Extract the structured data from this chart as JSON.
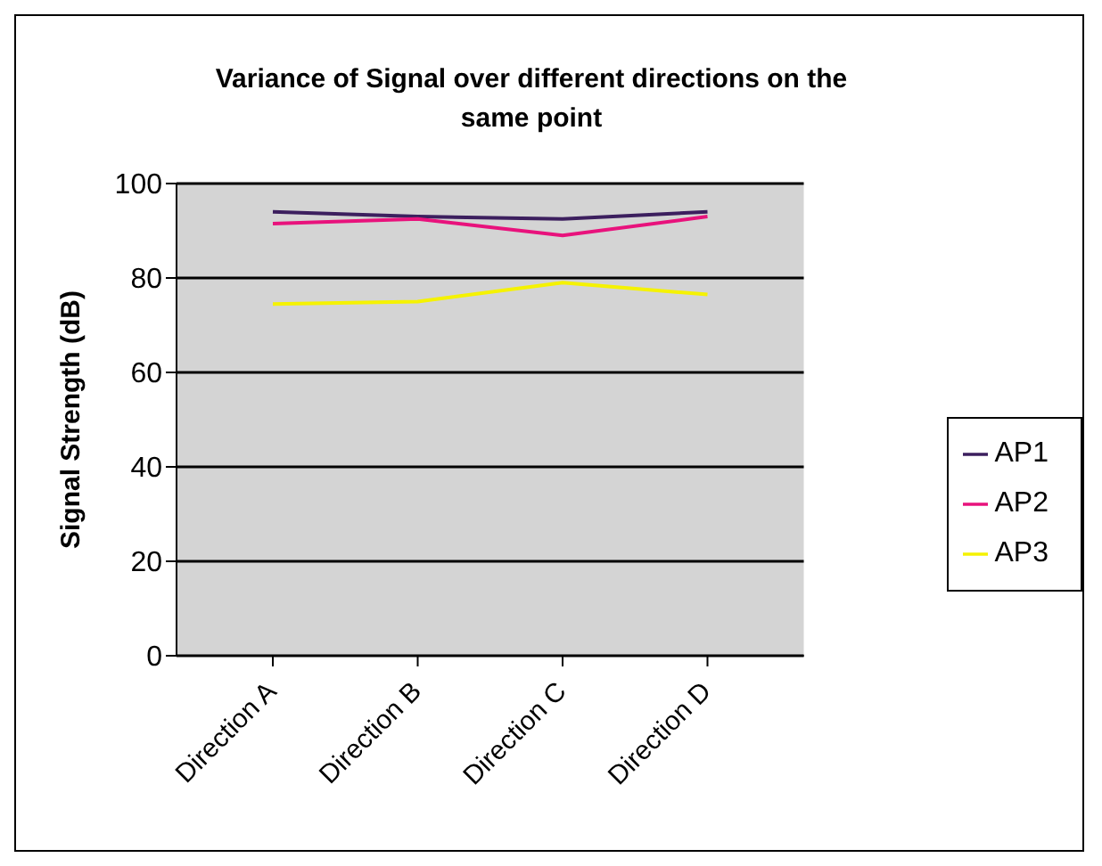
{
  "chart_data": {
    "type": "line",
    "title": "Variance of Signal over different directions on the same point",
    "ylabel": "Signal Strength (dB)",
    "categories": [
      "Direction A",
      "Direction B",
      "Direction C",
      "Direction D"
    ],
    "series": [
      {
        "name": "AP1",
        "color": "#3c1f5e",
        "values": [
          94,
          93,
          92.5,
          94
        ]
      },
      {
        "name": "AP2",
        "color": "#e8127c",
        "values": [
          91.5,
          92.5,
          89,
          93
        ]
      },
      {
        "name": "AP3",
        "color": "#f5f200",
        "values": [
          74.5,
          75,
          79,
          76.5
        ]
      }
    ],
    "ylim": [
      0,
      100
    ],
    "yticks": [
      0,
      20,
      40,
      60,
      80,
      100
    ],
    "grid": "y",
    "legend": "right",
    "marker": "none",
    "line_style": "solid"
  }
}
